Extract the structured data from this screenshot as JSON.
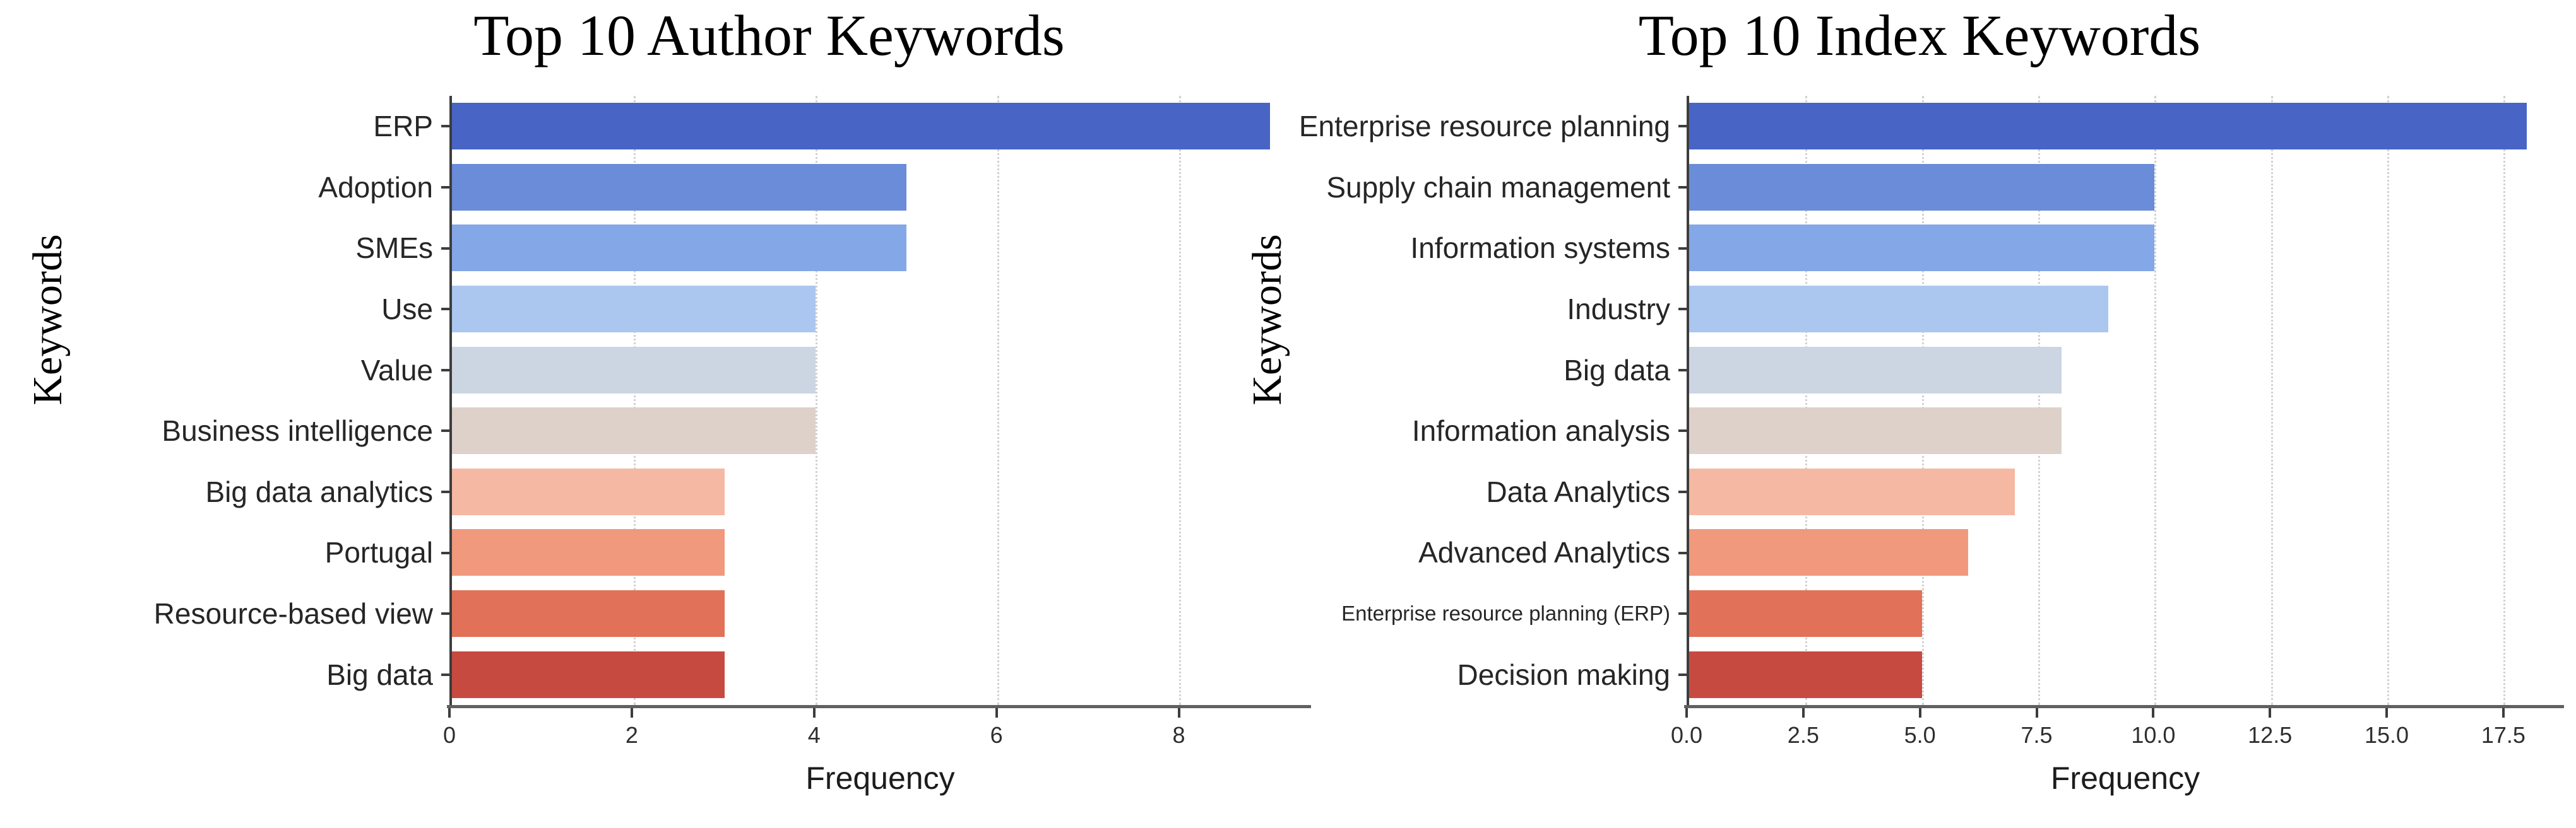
{
  "styles": {
    "background": "#ffffff",
    "axis_spine_color": "#3d3d3d",
    "bottom_spine_color": "#606060",
    "grid_color": "#d2d2d2",
    "category_label_color": "#262626",
    "tick_label_color": "#2e2e2e",
    "title_color": "#000000"
  },
  "chart_data": [
    {
      "type": "bar",
      "orientation": "horizontal",
      "title": "Top 10 Author Keywords",
      "xlabel": "Frequency",
      "ylabel": "Keywords",
      "categories": [
        "ERP",
        "Adoption",
        "SMEs",
        "Use",
        "Value",
        "Business intelligence",
        "Big data analytics",
        "Portugal",
        "Resource-based view",
        "Big data"
      ],
      "values": [
        9,
        5,
        5,
        4,
        4,
        4,
        3,
        3,
        3,
        3
      ],
      "bar_colors": [
        "#4865c5",
        "#6a8cd9",
        "#84a7e8",
        "#abc6ef",
        "#ccd5e2",
        "#ddd1ca",
        "#f5b8a2",
        "#f0997d",
        "#e17158",
        "#c74a40"
      ],
      "xlim": [
        0,
        9.45
      ],
      "xticks": [
        0,
        2,
        4,
        6,
        8
      ],
      "xtick_labels": [
        "0",
        "2",
        "4",
        "6",
        "8"
      ],
      "grid": "vertical-dotted",
      "legend": "none",
      "small_label_indices": []
    },
    {
      "type": "bar",
      "orientation": "horizontal",
      "title": "Top 10 Index Keywords",
      "xlabel": "Frequency",
      "ylabel": "Keywords",
      "categories": [
        "Enterprise resource planning",
        "Supply chain management",
        "Information systems",
        "Industry",
        "Big data",
        "Information analysis",
        "Data Analytics",
        "Advanced Analytics",
        "Enterprise resource planning (ERP)",
        "Decision making"
      ],
      "values": [
        18,
        10,
        10,
        9,
        8,
        8,
        7,
        6,
        5,
        5
      ],
      "bar_colors": [
        "#4865c5",
        "#6a8cd9",
        "#84a7e8",
        "#abc6ef",
        "#ccd5e2",
        "#ddd1ca",
        "#f5b8a2",
        "#f0997d",
        "#e17158",
        "#c74a40"
      ],
      "xlim": [
        0,
        18.8
      ],
      "xticks": [
        0,
        2.5,
        5,
        7.5,
        10,
        12.5,
        15,
        17.5
      ],
      "xtick_labels": [
        "0.0",
        "2.5",
        "5.0",
        "7.5",
        "10.0",
        "12.5",
        "15.0",
        "17.5"
      ],
      "grid": "vertical-dotted",
      "legend": "none",
      "small_label_indices": [
        8
      ]
    }
  ]
}
